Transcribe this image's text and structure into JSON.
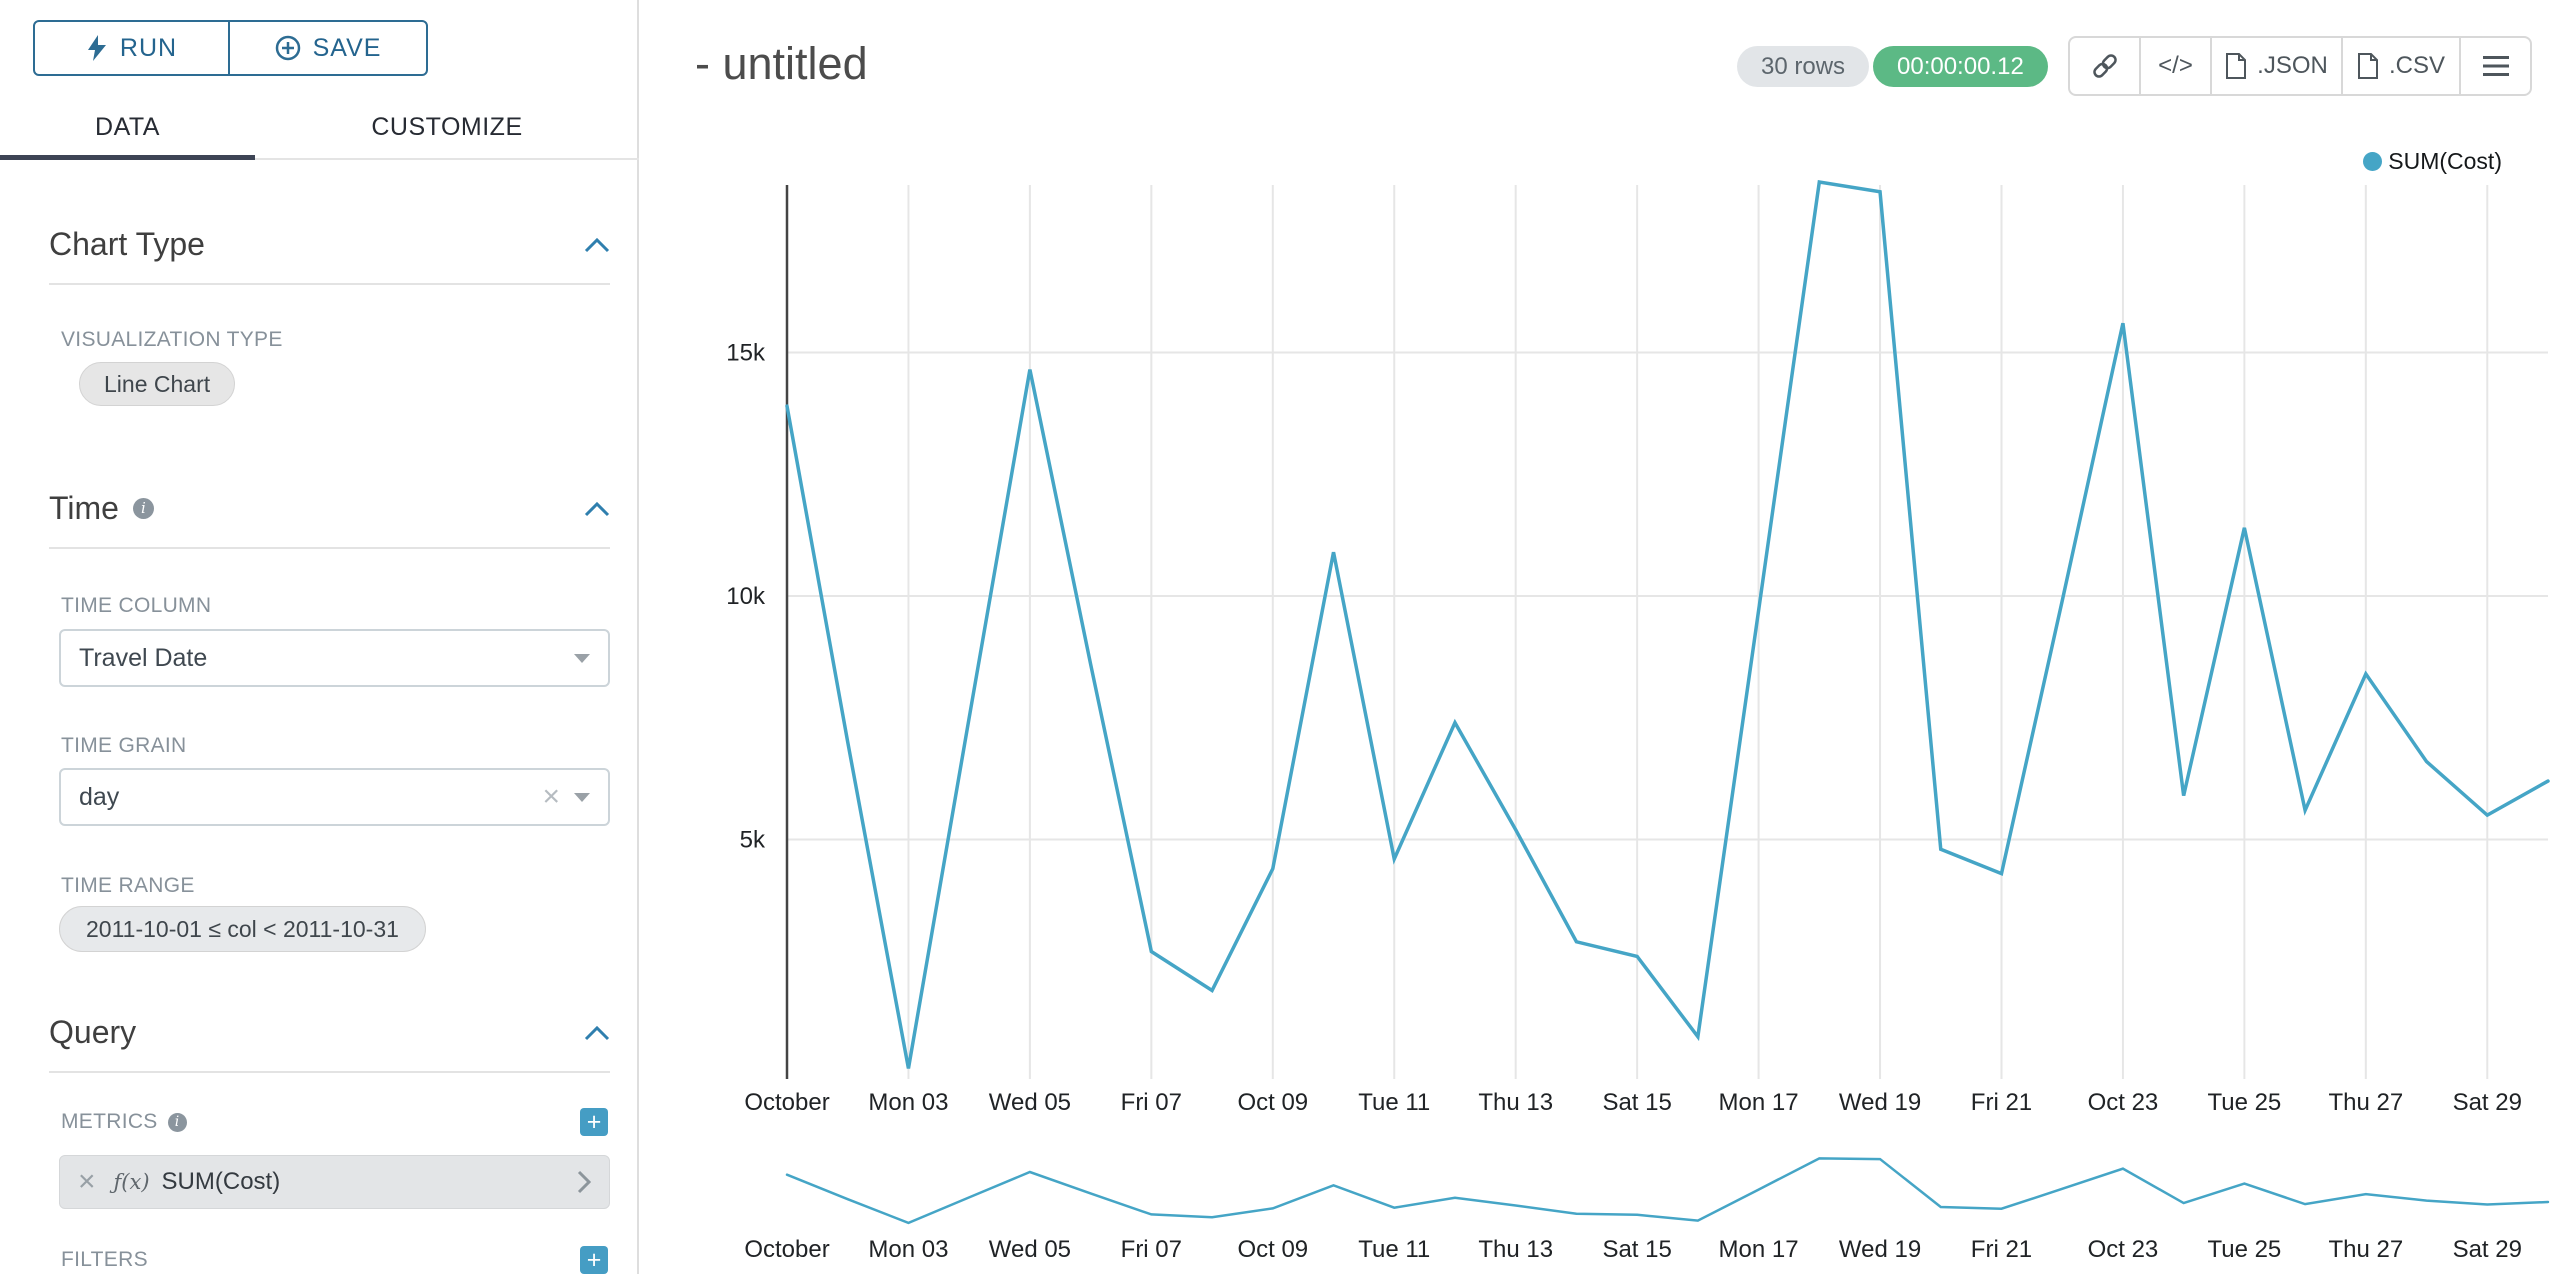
{
  "colors": {
    "primary_blue": "#2d6c93",
    "accent_blue": "#459dc4",
    "tab_underline": "#3d4455",
    "timer_green": "#5cb985",
    "series_line": "#45a5c6"
  },
  "sidebar": {
    "run_label": "RUN",
    "save_label": "SAVE",
    "tabs": [
      {
        "label": "DATA"
      },
      {
        "label": "CUSTOMIZE"
      }
    ],
    "chart_type": {
      "title": "Chart Type",
      "viz_type_label": "VISUALIZATION TYPE",
      "viz_type_value": "Line Chart"
    },
    "time": {
      "title": "Time",
      "time_column_label": "TIME COLUMN",
      "time_column_value": "Travel Date",
      "time_grain_label": "TIME GRAIN",
      "time_grain_value": "day",
      "time_range_label": "TIME RANGE",
      "time_range_value": "2011-10-01 ≤ col < 2011-10-31"
    },
    "query": {
      "title": "Query",
      "metrics_label": "METRICS",
      "metric_function_badge": "ƒ(x)",
      "metric_value": "SUM(Cost)",
      "filters_label": "FILTERS"
    }
  },
  "header": {
    "title": "- untitled",
    "rows_badge": "30 rows",
    "timer_badge": "00:00:00.12",
    "code_icon_label": "</>",
    "export_json_label": ".JSON",
    "export_csv_label": ".CSV"
  },
  "legend": {
    "label": "SUM(Cost)"
  },
  "chart_data": {
    "type": "line",
    "title": "",
    "xlabel": "",
    "ylabel": "",
    "x": [
      "2011-10-01",
      "2011-10-02",
      "2011-10-03",
      "2011-10-04",
      "2011-10-05",
      "2011-10-06",
      "2011-10-07",
      "2011-10-08",
      "2011-10-09",
      "2011-10-10",
      "2011-10-11",
      "2011-10-12",
      "2011-10-13",
      "2011-10-14",
      "2011-10-15",
      "2011-10-16",
      "2011-10-17",
      "2011-10-18",
      "2011-10-19",
      "2011-10-20",
      "2011-10-21",
      "2011-10-22",
      "2011-10-23",
      "2011-10-24",
      "2011-10-25",
      "2011-10-26",
      "2011-10-27",
      "2011-10-28",
      "2011-10-29",
      "2011-10-30"
    ],
    "series": [
      {
        "name": "SUM(Cost)",
        "values": [
          13900,
          7000,
          300,
          7500,
          14650,
          8600,
          2700,
          1900,
          4400,
          10900,
          4600,
          7400,
          5200,
          2900,
          2600,
          950,
          9700,
          18500,
          18300,
          4800,
          4300,
          9900,
          15600,
          5900,
          11400,
          5600,
          8400,
          6600,
          5500,
          6200
        ]
      }
    ],
    "x_tick_labels": [
      "October",
      "Mon 03",
      "Wed 05",
      "Fri 07",
      "Oct 09",
      "Tue 11",
      "Thu 13",
      "Sat 15",
      "Mon 17",
      "Wed 19",
      "Fri 21",
      "Oct 23",
      "Tue 25",
      "Thu 27",
      "Sat 29"
    ],
    "y_ticks": [
      5000,
      10000,
      15000
    ],
    "y_tick_labels": [
      "5k",
      "10k",
      "15k"
    ],
    "ylim": [
      0,
      18600
    ],
    "grid": true,
    "legend_position": "top-right",
    "line_color": "#45a5c6",
    "context_chart": true
  }
}
